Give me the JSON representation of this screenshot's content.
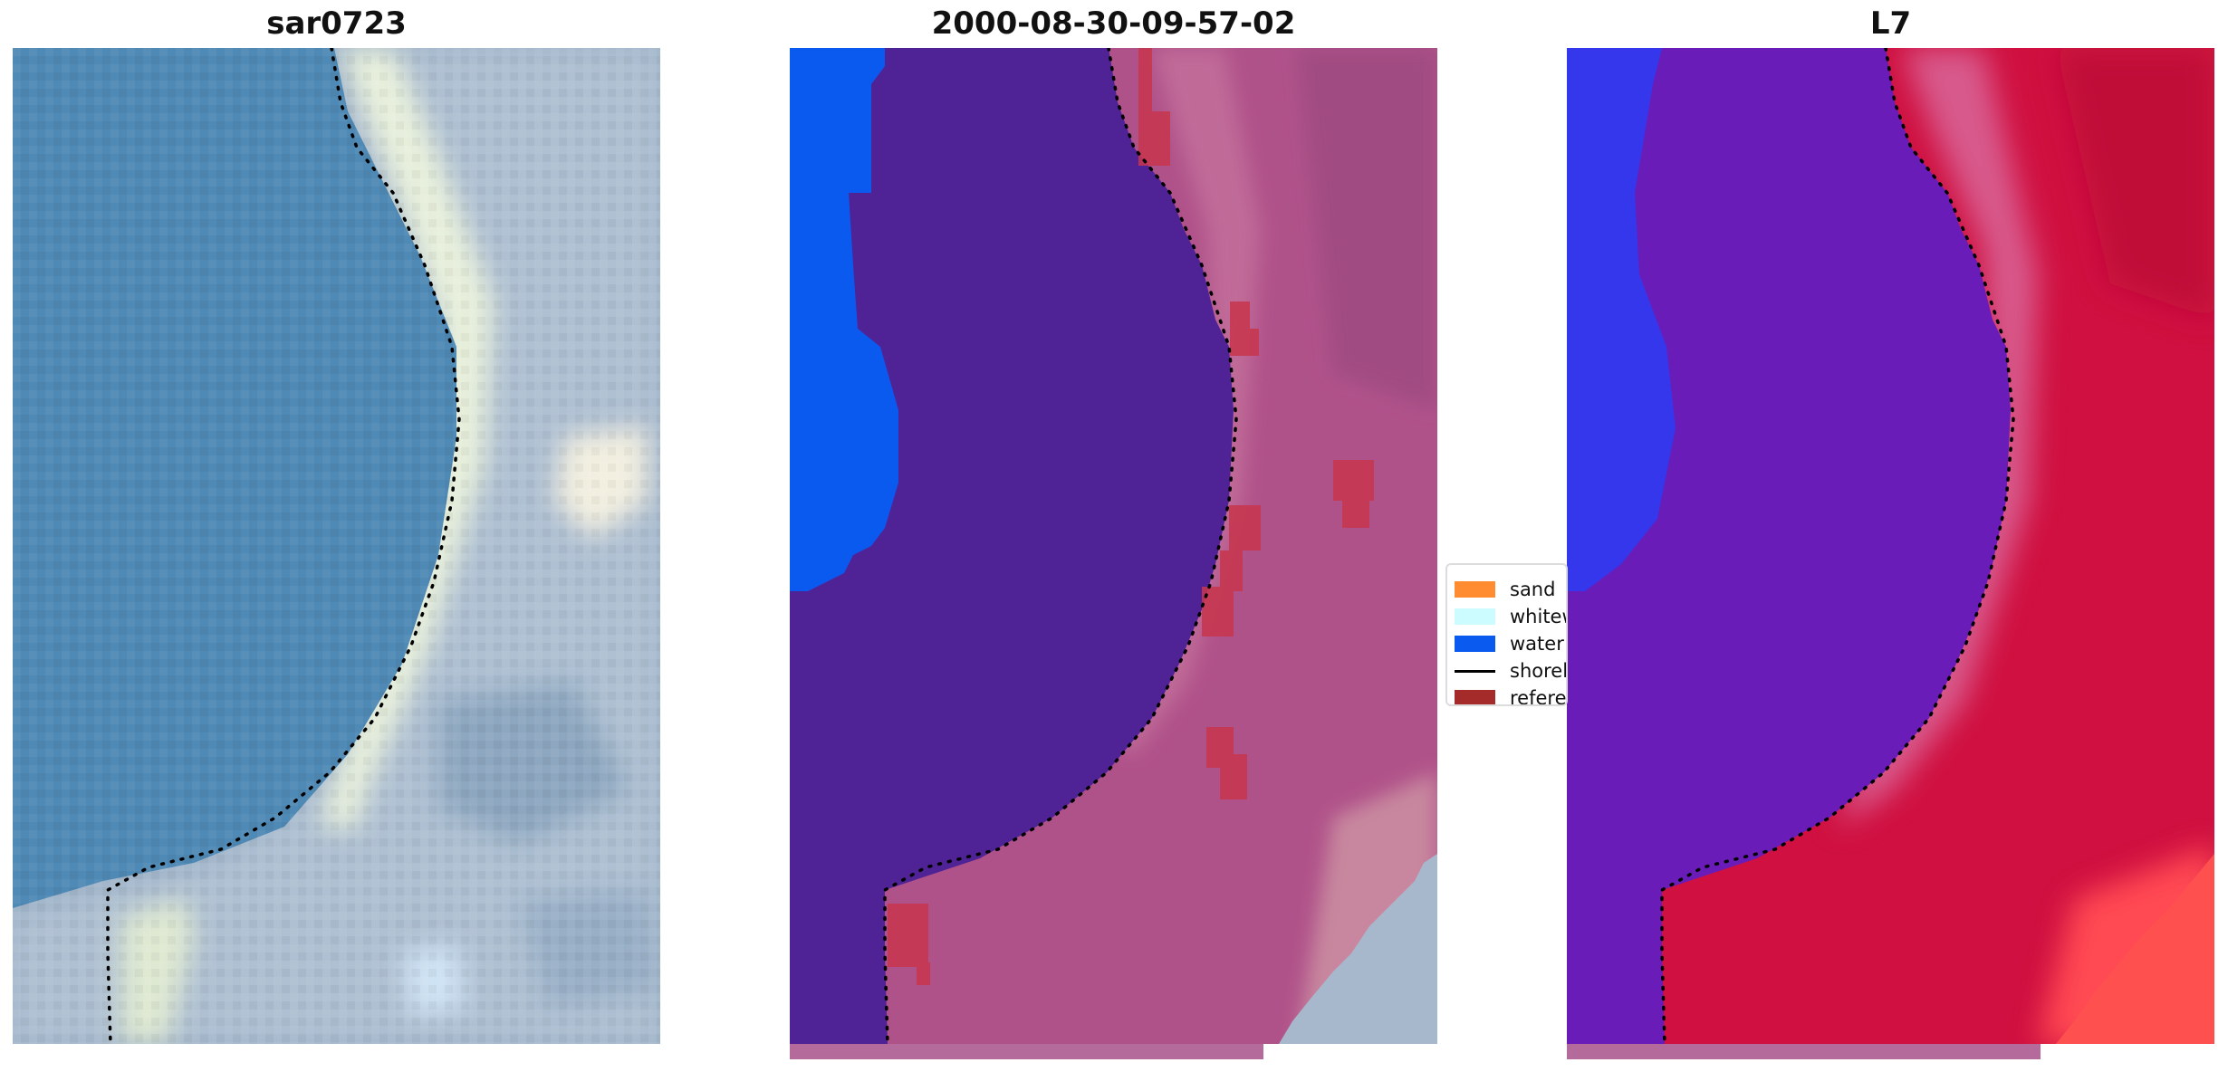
{
  "panels": [
    {
      "title": "sar0723"
    },
    {
      "title": "2000-08-30-09-57-02"
    },
    {
      "title": "L7"
    }
  ],
  "legend": {
    "items": [
      {
        "label": "sand",
        "kind": "patch",
        "color": "#ff8c30"
      },
      {
        "label": "whitewater",
        "kind": "patch",
        "color": "#ccfcff"
      },
      {
        "label": "water",
        "kind": "patch",
        "color": "#0a5af0"
      },
      {
        "label": "shoreline",
        "kind": "line",
        "color": "#000000"
      },
      {
        "label": "reference",
        "kind": "patch",
        "color": "#a52a2a"
      }
    ]
  },
  "colors": {
    "water_rgb": "#4f89b5",
    "classified_water": "#4f2396",
    "classified_land": "#b0528a",
    "classified_ocean": "#0a5af0",
    "l7_water": "#6a1cb8",
    "l7_land": "#cf1040",
    "l7_ocean": "#2a3cf5"
  }
}
